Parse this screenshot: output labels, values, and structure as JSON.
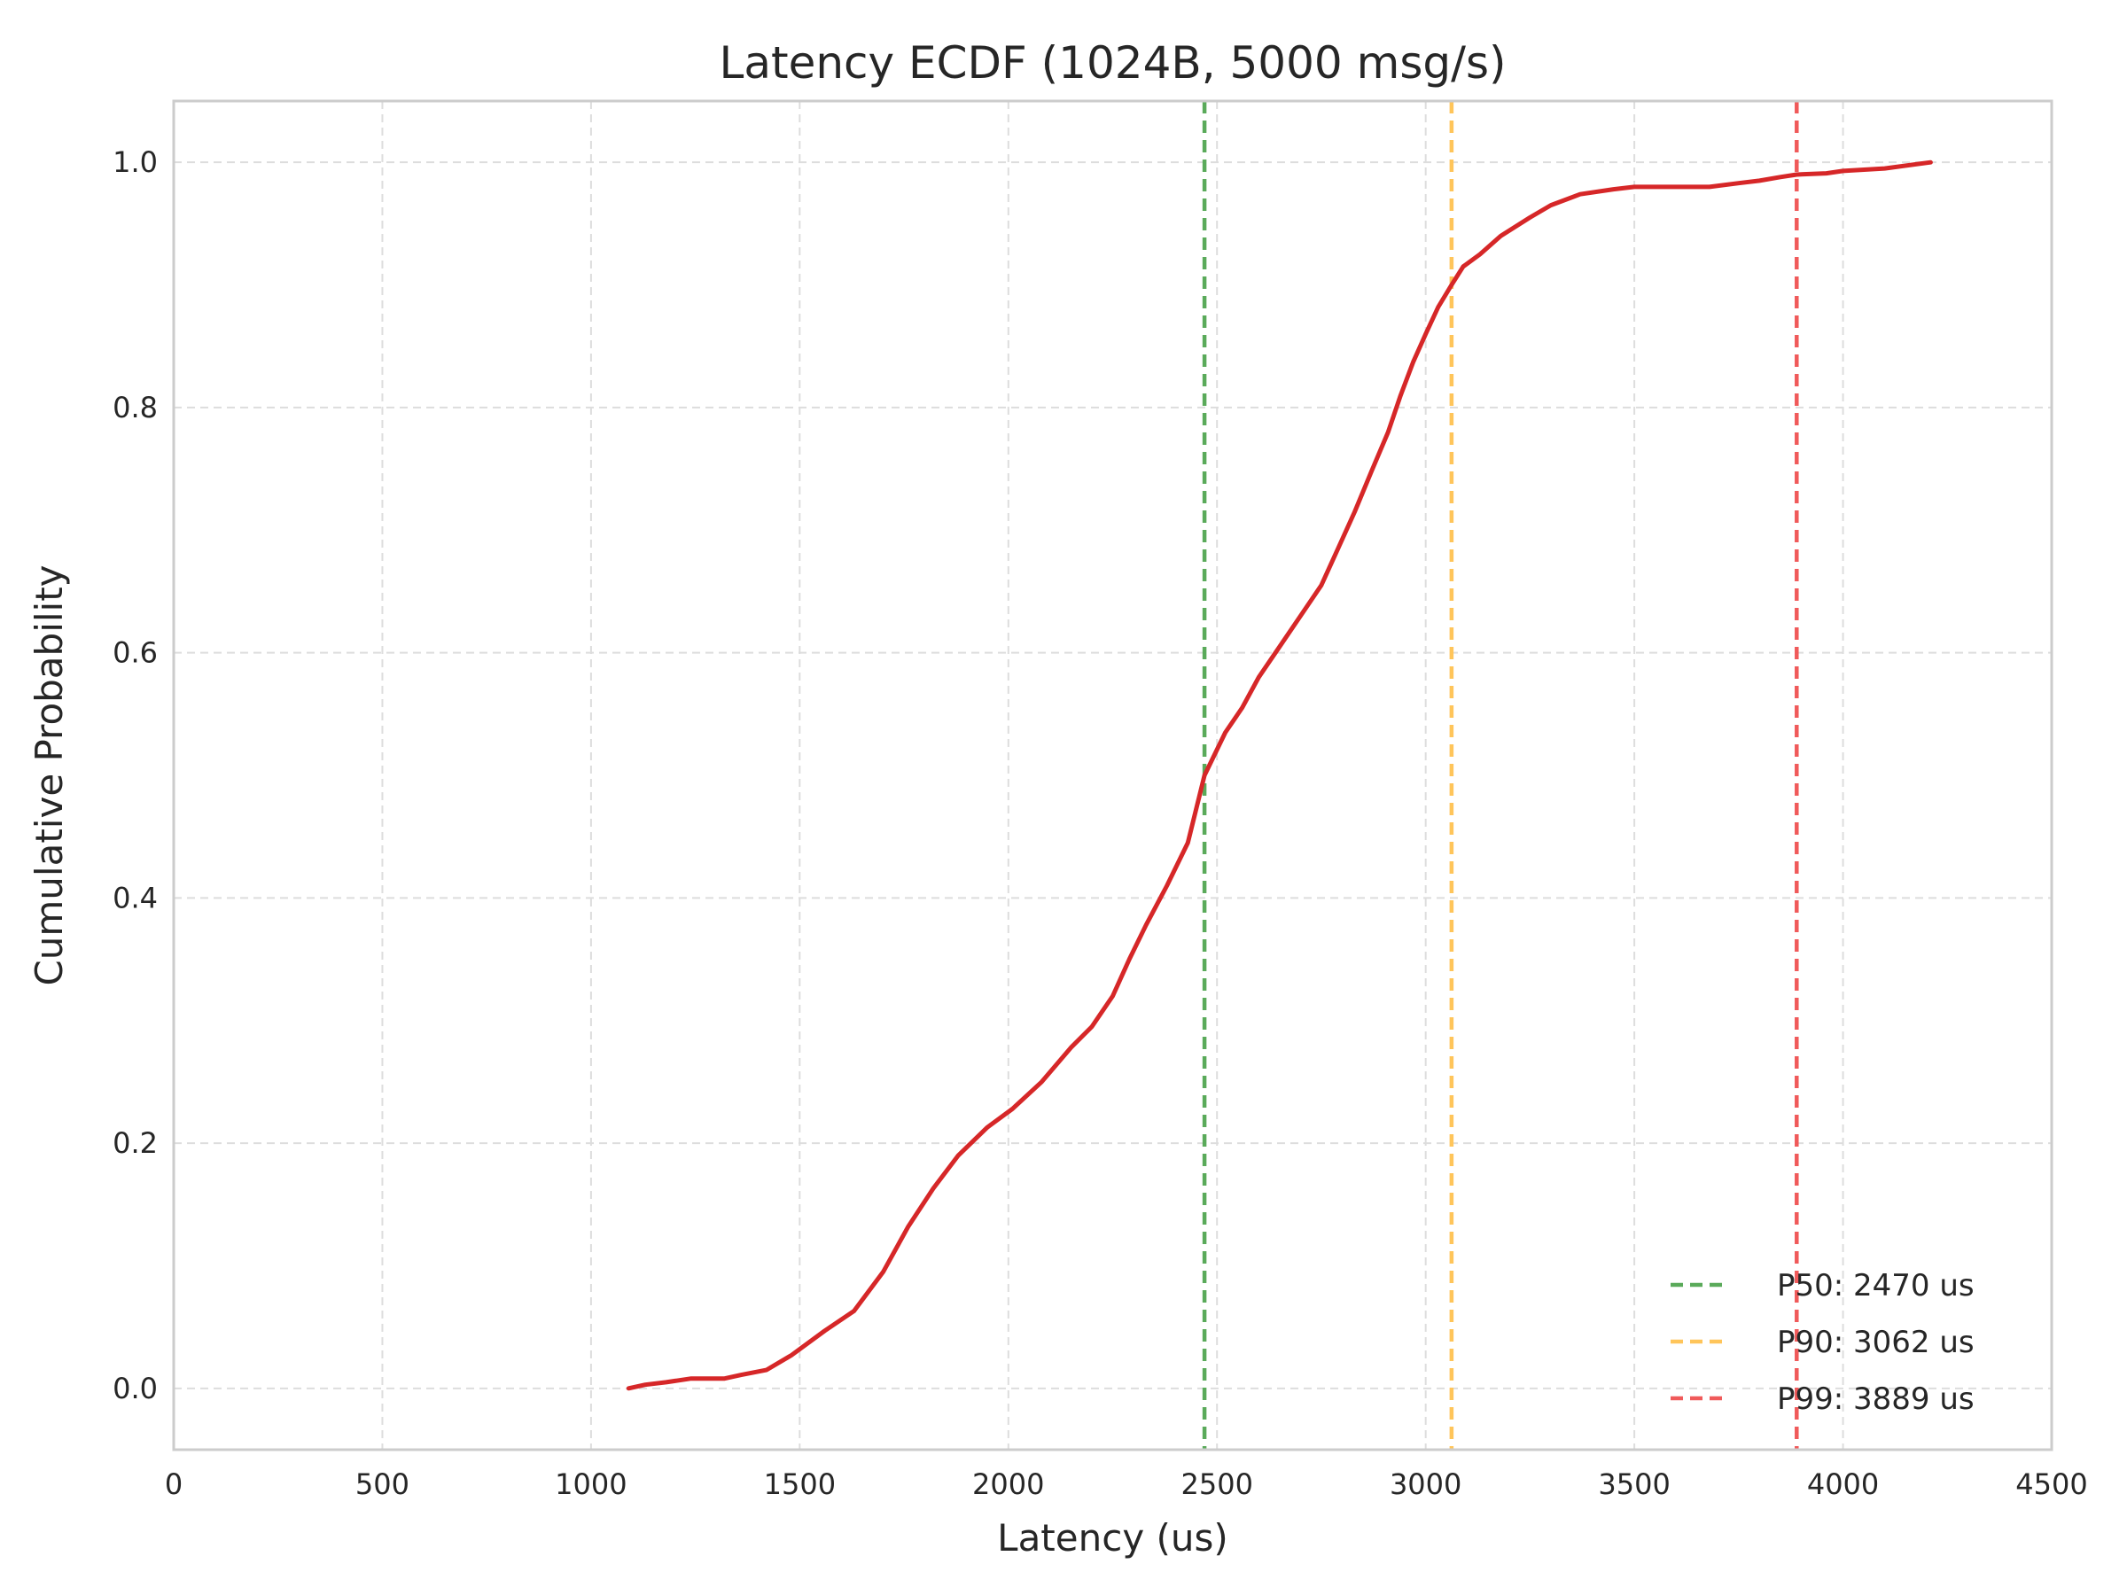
{
  "chart_data": {
    "type": "line",
    "title": "Latency ECDF (1024B, 5000 msg/s)",
    "xlabel": "Latency (us)",
    "ylabel": "Cumulative Probability",
    "xlim": [
      0,
      4500
    ],
    "ylim": [
      -0.05,
      1.05
    ],
    "xticks": [
      0,
      500,
      1000,
      1500,
      2000,
      2500,
      3000,
      3500,
      4000,
      4500
    ],
    "yticks": [
      0.0,
      0.2,
      0.4,
      0.6,
      0.8,
      1.0
    ],
    "xtick_labels": [
      "0",
      "500",
      "1000",
      "1500",
      "2000",
      "2500",
      "3000",
      "3500",
      "4000",
      "4500"
    ],
    "ytick_labels": [
      "0.0",
      "0.2",
      "0.4",
      "0.6",
      "0.8",
      "1.0"
    ],
    "grid": true,
    "legend_position": "bottom-right",
    "series": [
      {
        "color": "#d62728",
        "x": [
          1090,
          1130,
          1180,
          1240,
          1320,
          1360,
          1420,
          1480,
          1560,
          1630,
          1700,
          1760,
          1820,
          1880,
          1950,
          2010,
          2080,
          2150,
          2200,
          2250,
          2290,
          2330,
          2380,
          2430,
          2470,
          2520,
          2560,
          2600,
          2650,
          2700,
          2750,
          2790,
          2830,
          2870,
          2910,
          2940,
          2970,
          3000,
          3030,
          3062,
          3090,
          3130,
          3180,
          3250,
          3300,
          3370,
          3450,
          3500,
          3600,
          3680,
          3750,
          3800,
          3850,
          3889,
          3960,
          4000,
          4100,
          4210
        ],
        "y": [
          0.0,
          0.003,
          0.005,
          0.008,
          0.008,
          0.011,
          0.015,
          0.027,
          0.047,
          0.063,
          0.095,
          0.132,
          0.163,
          0.19,
          0.213,
          0.228,
          0.25,
          0.278,
          0.295,
          0.32,
          0.35,
          0.378,
          0.41,
          0.445,
          0.5,
          0.535,
          0.555,
          0.58,
          0.605,
          0.63,
          0.655,
          0.685,
          0.715,
          0.748,
          0.78,
          0.81,
          0.837,
          0.86,
          0.882,
          0.9,
          0.915,
          0.925,
          0.94,
          0.955,
          0.965,
          0.974,
          0.978,
          0.98,
          0.98,
          0.98,
          0.983,
          0.985,
          0.988,
          0.99,
          0.991,
          0.993,
          0.995,
          1.0
        ]
      }
    ],
    "reference_lines": [
      {
        "label": "P50: 2470 us",
        "x": 2470,
        "color": "#5aaa5a"
      },
      {
        "label": "P90: 3062 us",
        "x": 3062,
        "color": "#ffc55a"
      },
      {
        "label": "P99: 3889 us",
        "x": 3889,
        "color": "#f05a5a"
      }
    ]
  }
}
